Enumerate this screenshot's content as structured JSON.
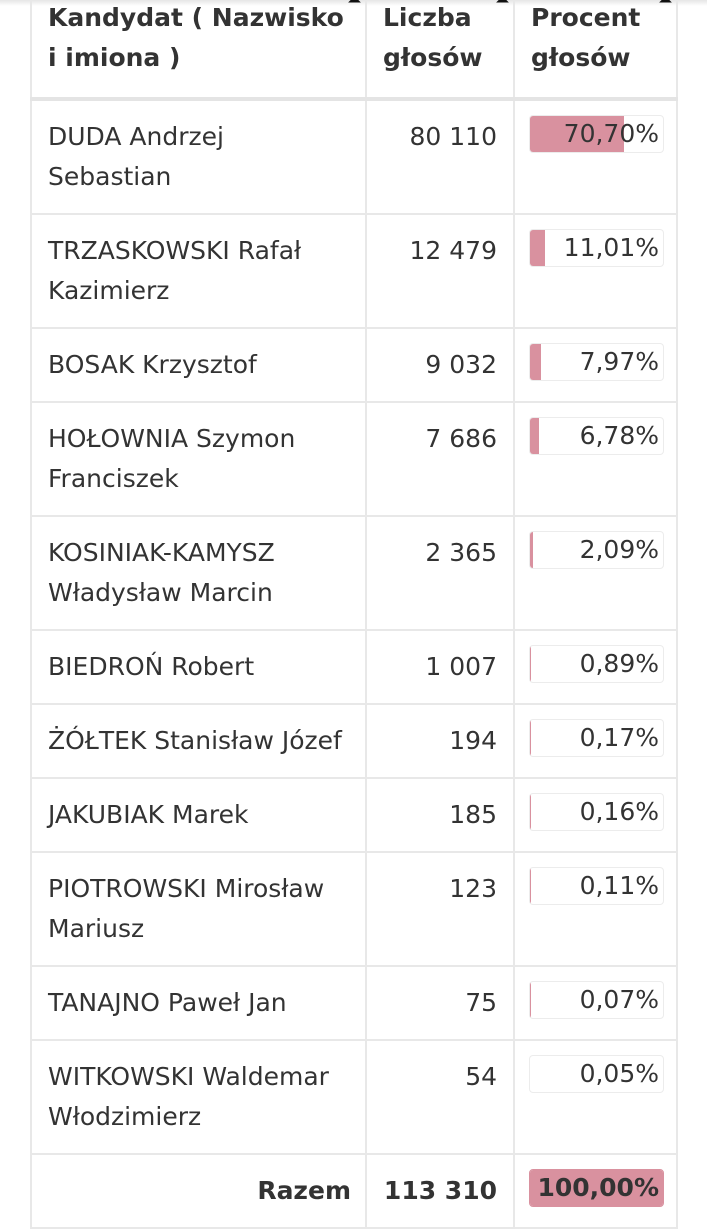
{
  "headers": {
    "candidate": "Kandydat ( Nazwisko i imiona )",
    "votes": "Liczba głosów",
    "percent": "Procent głosów"
  },
  "bar_color": "#d9919f",
  "rows": [
    {
      "name": "DUDA Andrzej Sebastian",
      "votes": "80 110",
      "percent": "70,70%",
      "value": 70.7
    },
    {
      "name": "TRZASKOWSKI Rafał Kazimierz",
      "votes": "12 479",
      "percent": "11,01%",
      "value": 11.01
    },
    {
      "name": "BOSAK Krzysztof",
      "votes": "9 032",
      "percent": "7,97%",
      "value": 7.97
    },
    {
      "name": "HOŁOWNIA Szymon Franciszek",
      "votes": "7 686",
      "percent": "6,78%",
      "value": 6.78
    },
    {
      "name": "KOSINIAK-KAMYSZ Władysław Marcin",
      "votes": "2 365",
      "percent": "2,09%",
      "value": 2.09
    },
    {
      "name": "BIEDROŃ Robert",
      "votes": "1 007",
      "percent": "0,89%",
      "value": 0.89
    },
    {
      "name": "ŻÓŁTEK Stanisław Józef",
      "votes": "194",
      "percent": "0,17%",
      "value": 0.17
    },
    {
      "name": "JAKUBIAK Marek",
      "votes": "185",
      "percent": "0,16%",
      "value": 0.16
    },
    {
      "name": "PIOTROWSKI Mirosław Mariusz",
      "votes": "123",
      "percent": "0,11%",
      "value": 0.11
    },
    {
      "name": "TANAJNO Paweł Jan",
      "votes": "75",
      "percent": "0,07%",
      "value": 0.07
    },
    {
      "name": "WITKOWSKI Waldemar Włodzimierz",
      "votes": "54",
      "percent": "0,05%",
      "value": 0.05
    }
  ],
  "total": {
    "label": "Razem",
    "votes": "113 310",
    "percent": "100,00%",
    "value": 100
  }
}
